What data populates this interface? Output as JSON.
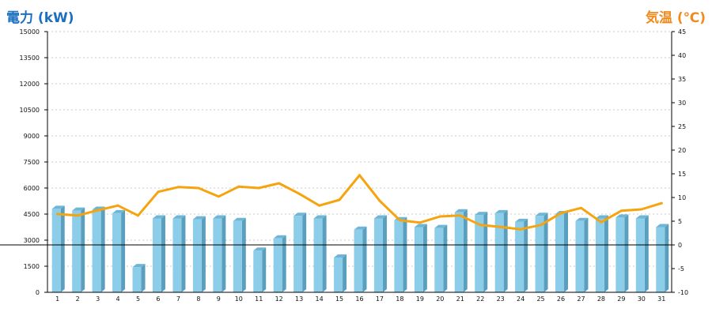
{
  "left_axis_title": "電力 (kW)",
  "right_axis_title": "気温 (℃)",
  "colors": {
    "left_title": "#1a6fc0",
    "right_title": "#f08a1c",
    "bar_front": "#8ccde9",
    "bar_side": "#5a9fbe",
    "bar_top": "#6fb6d6",
    "line": "#f5a40f",
    "grid": "#bbbbbb",
    "axis": "#000000"
  },
  "chart_data": {
    "type": "bar",
    "categories": [
      "1",
      "2",
      "3",
      "4",
      "5",
      "6",
      "7",
      "8",
      "9",
      "10",
      "11",
      "12",
      "13",
      "14",
      "15",
      "16",
      "17",
      "18",
      "19",
      "20",
      "21",
      "22",
      "23",
      "24",
      "25",
      "26",
      "27",
      "28",
      "29",
      "30",
      "31"
    ],
    "series": [
      {
        "axis": "left",
        "type": "bar",
        "values": [
          4800,
          4700,
          4750,
          4550,
          1450,
          4250,
          4250,
          4200,
          4250,
          4100,
          2400,
          3100,
          4400,
          4250,
          2000,
          3600,
          4250,
          4150,
          3750,
          3700,
          4600,
          4450,
          4550,
          4050,
          4400,
          4500,
          4100,
          4250,
          4300,
          4250,
          3750
        ]
      },
      {
        "axis": "right",
        "type": "line",
        "values": [
          6.5,
          6.2,
          7.3,
          8.3,
          6.2,
          11.2,
          12.2,
          12.0,
          10.2,
          12.3,
          12.0,
          13.0,
          10.8,
          8.3,
          9.5,
          14.7,
          9.3,
          5.2,
          4.7,
          6.0,
          6.2,
          4.2,
          3.8,
          3.3,
          4.2,
          6.7,
          7.8,
          4.8,
          7.2,
          7.5,
          8.8
        ]
      }
    ],
    "y_left": {
      "min": 0,
      "max": 15000,
      "ticks": [
        "0",
        "1500",
        "3000",
        "4500",
        "6000",
        "7500",
        "9000",
        "10500",
        "12000",
        "13500",
        "15000"
      ]
    },
    "y_right": {
      "min": -10,
      "max": 45,
      "ticks": [
        "-10",
        "-5",
        "0",
        "5",
        "10",
        "15",
        "20",
        "25",
        "30",
        "35",
        "40",
        "45"
      ]
    },
    "grid": true,
    "zero_line": "right-axis 0"
  }
}
